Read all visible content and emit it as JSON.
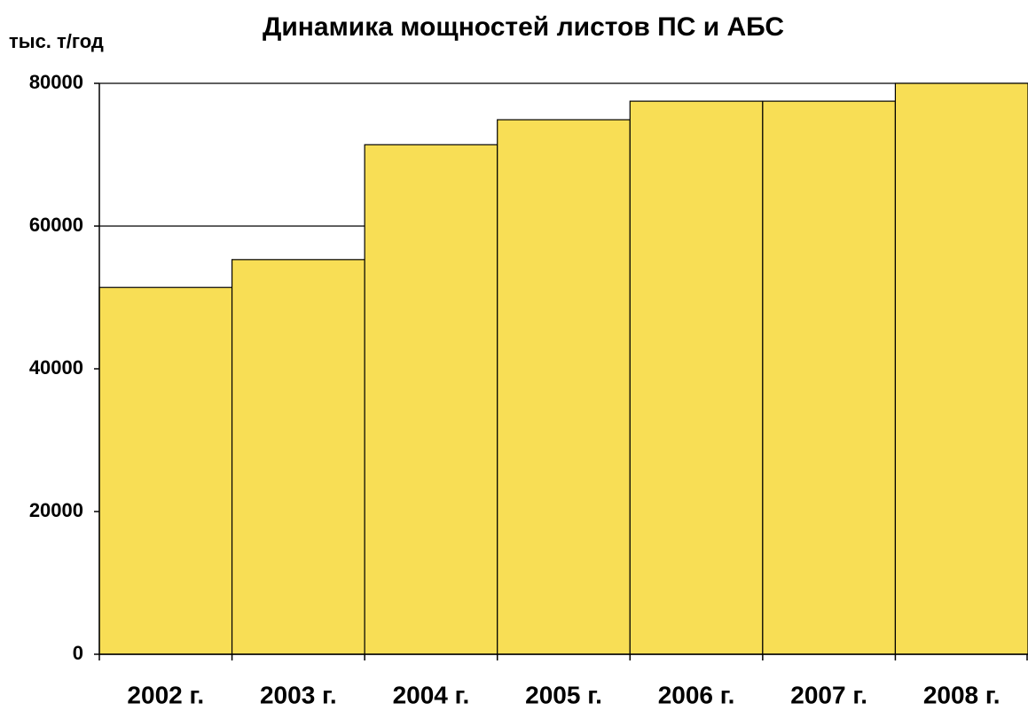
{
  "chart_data": {
    "type": "bar",
    "title": "Динамика мощностей листов ПС и АБС",
    "y_label": "тыс. т/год",
    "categories": [
      "2002 г.",
      "2003 г.",
      "2004 г.",
      "2005 г.",
      "2006 г.",
      "2007 г.",
      "2008 г."
    ],
    "values": [
      51400,
      55300,
      71400,
      74900,
      77500,
      77500,
      80000
    ],
    "color": "#f8de55",
    "ylim": [
      0,
      80000
    ],
    "yticks": [
      0,
      20000,
      40000,
      60000,
      80000
    ],
    "grid": true
  }
}
